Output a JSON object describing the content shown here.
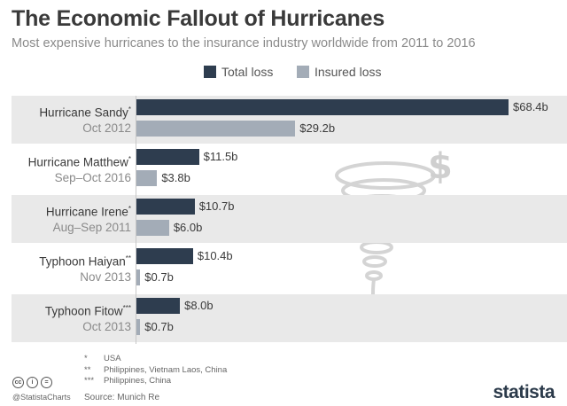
{
  "title": "The Economic Fallout of Hurricanes",
  "subtitle": "Most expensive hurricanes to the insurance industry worldwide from 2011 to 2016",
  "legend": {
    "total": "Total loss",
    "insured": "Insured loss"
  },
  "colors": {
    "total": "#2e3d4f",
    "insured": "#a3acb7",
    "band": "#e9e9e9"
  },
  "chart_data": {
    "type": "bar",
    "orientation": "horizontal",
    "title": "The Economic Fallout of Hurricanes",
    "subtitle": "Most expensive hurricanes to the insurance industry worldwide from 2011 to 2016",
    "categories": [
      "Hurricane Sandy",
      "Hurricane Matthew",
      "Hurricane Irene",
      "Typhoon Haiyan",
      "Typhoon Fitow"
    ],
    "series": [
      {
        "name": "Total loss",
        "values": [
          68.4,
          11.5,
          10.7,
          10.4,
          8.0
        ]
      },
      {
        "name": "Insured loss",
        "values": [
          29.2,
          3.8,
          6.0,
          0.7,
          0.7
        ]
      }
    ],
    "xlim": [
      0,
      68.4
    ],
    "grid": false,
    "legend_position": "top-center"
  },
  "rows": [
    {
      "name": "Hurricane Sandy",
      "mark": "*",
      "date": "Oct 2012",
      "total_label": "$68.4b",
      "insured_label": "$29.2b"
    },
    {
      "name": "Hurricane Matthew",
      "mark": "*",
      "date": "Sep–Oct 2016",
      "total_label": "$11.5b",
      "insured_label": "$3.8b"
    },
    {
      "name": "Hurricane Irene",
      "mark": "*",
      "date": "Aug–Sep 2011",
      "total_label": "$10.7b",
      "insured_label": "$6.0b"
    },
    {
      "name": "Typhoon Haiyan",
      "mark": "**",
      "date": "Nov 2013",
      "total_label": "$10.4b",
      "insured_label": "$0.7b"
    },
    {
      "name": "Typhoon Fitow",
      "mark": "***",
      "date": "Oct 2013",
      "total_label": "$8.0b",
      "insured_label": "$0.7b"
    }
  ],
  "footnotes": [
    {
      "marker": "*",
      "text": "USA"
    },
    {
      "marker": "**",
      "text": "Philippines, Vietnam Laos, China"
    },
    {
      "marker": "***",
      "text": "Philippines, China"
    }
  ],
  "footer": {
    "handle": "@StatistaCharts",
    "source": "Source: Munich Re",
    "logo": "statista",
    "cc_icons": [
      "cc",
      "i",
      "="
    ]
  }
}
